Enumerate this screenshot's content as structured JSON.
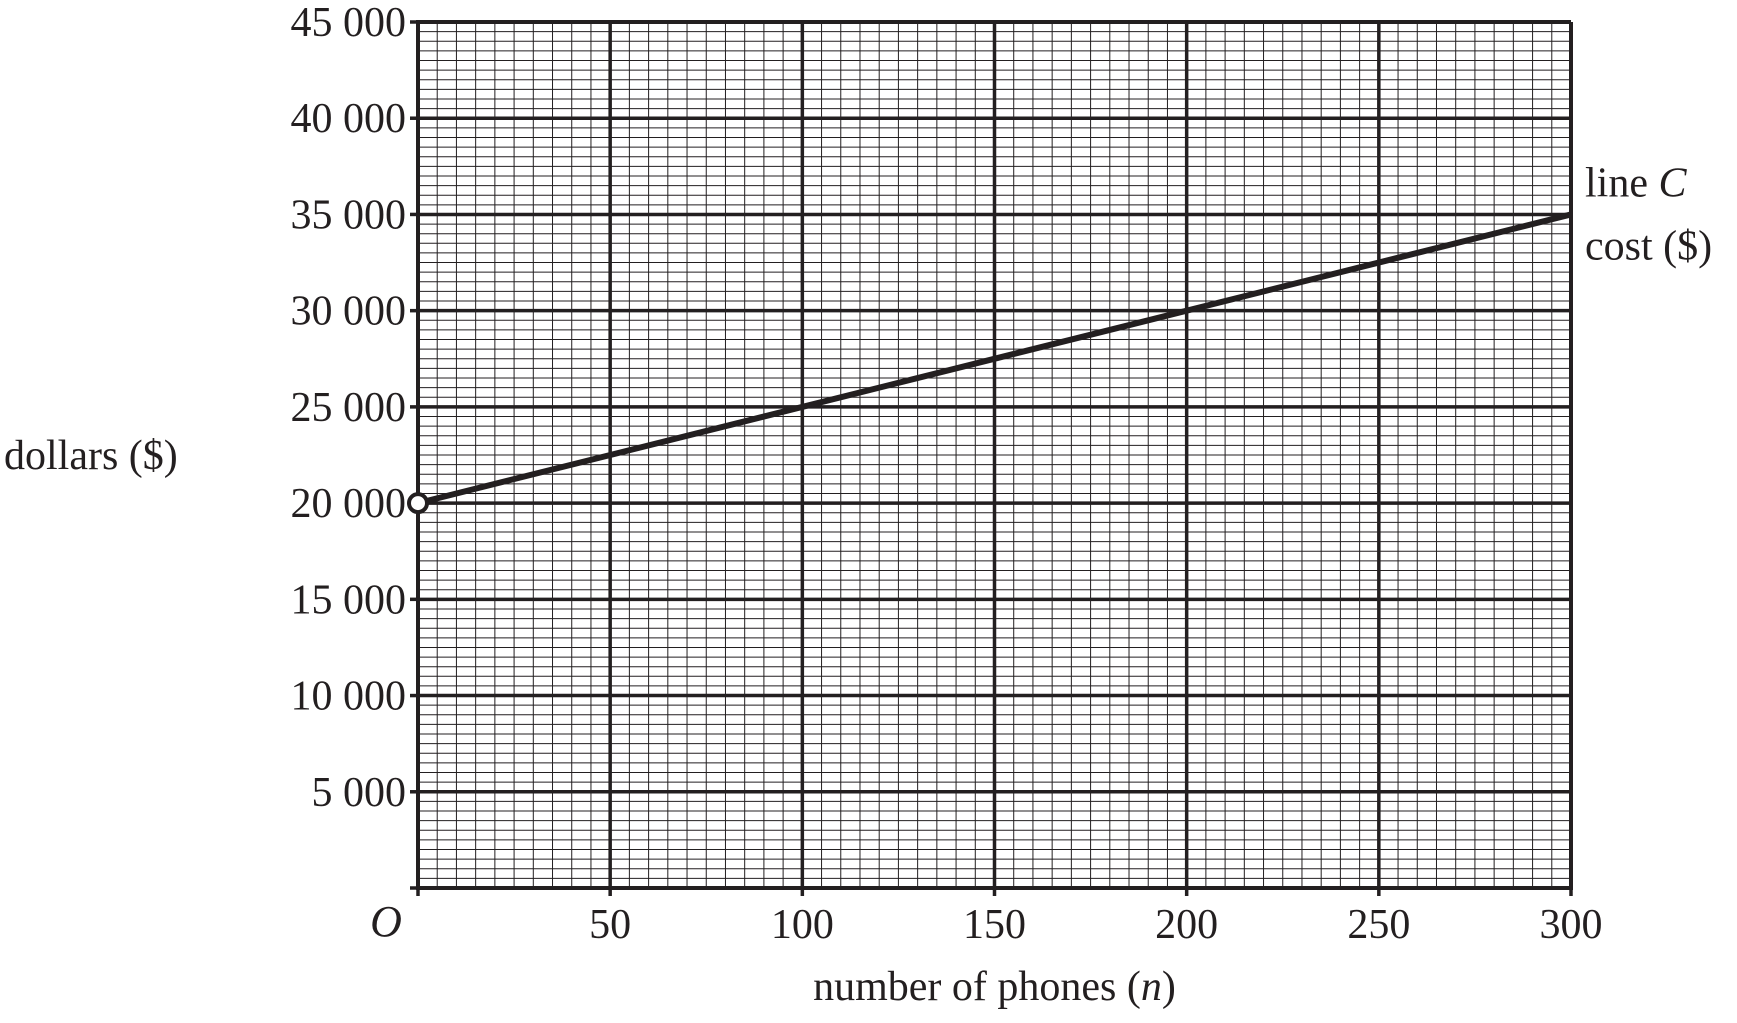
{
  "chart_data": {
    "type": "line",
    "title": "",
    "xlabel": {
      "pre": "number of phones (",
      "var": "n",
      "post": ")"
    },
    "ylabel": "dollars ($)",
    "origin_label": "O",
    "xlim": [
      0,
      300
    ],
    "ylim": [
      0,
      45000
    ],
    "x_ticks": [
      50,
      100,
      150,
      200,
      250,
      300
    ],
    "x_tick_labels": [
      "50",
      "100",
      "150",
      "200",
      "250",
      "300"
    ],
    "y_ticks": [
      5000,
      10000,
      15000,
      20000,
      25000,
      30000,
      35000,
      40000,
      45000
    ],
    "y_tick_labels": [
      "5 000",
      "10 000",
      "15 000",
      "20 000",
      "25 000",
      "30 000",
      "35 000",
      "40 000",
      "45 000"
    ],
    "grid": true,
    "minor_grid_per_major": 10,
    "series": [
      {
        "label_lines": [
          {
            "pre": "line ",
            "var": "C"
          },
          {
            "pre": "cost ($)",
            "var": ""
          }
        ],
        "x": [
          0,
          300
        ],
        "y": [
          20000,
          35000
        ],
        "start_marker": "open-circle",
        "color": "#231f20"
      }
    ]
  }
}
